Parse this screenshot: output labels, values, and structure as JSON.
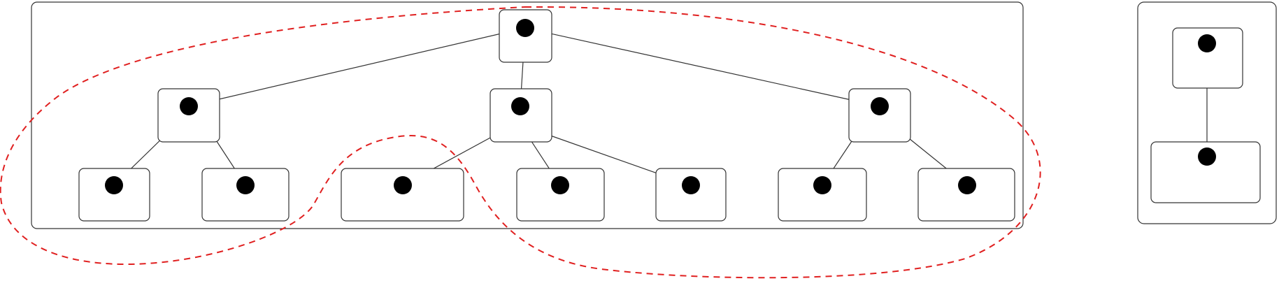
{
  "diagram": {
    "kind": "tree-nodes-in-boxes",
    "colors": {
      "line": "#333333",
      "node": "#000000",
      "boundary": "#e02020",
      "background": "#ffffff"
    },
    "left_tree": {
      "levels": [
        {
          "level": 0,
          "count": 1
        },
        {
          "level": 1,
          "count": 3
        },
        {
          "level": 2,
          "count": 7
        }
      ]
    },
    "right_tree": {
      "levels": [
        {
          "level": 0,
          "count": 1
        },
        {
          "level": 1,
          "count": 1
        }
      ]
    },
    "boundary": {
      "style": "dashed",
      "description_shape": "lasso"
    }
  }
}
